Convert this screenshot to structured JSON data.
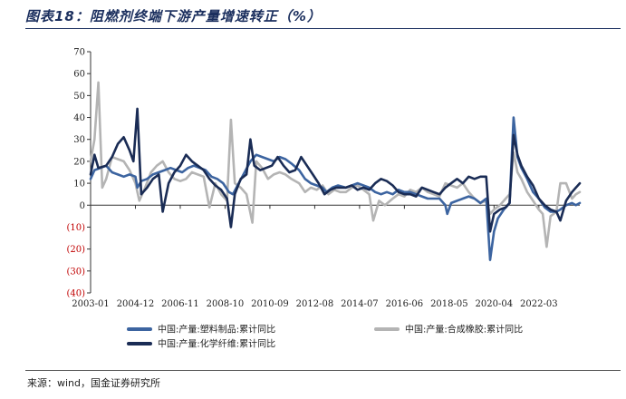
{
  "title": "图表18：阻燃剂终端下游产量增速转正（%）",
  "source": "来源：wind，国金证券研究所",
  "chart_data": {
    "type": "line",
    "ylim": [
      -40,
      70
    ],
    "yticks": [
      70,
      60,
      50,
      40,
      30,
      20,
      10,
      0,
      -10,
      -20,
      -30,
      -40
    ],
    "ytick_labels": [
      "70",
      "60",
      "50",
      "40",
      "30",
      "20",
      "10",
      "0",
      "(10)",
      "(20)",
      "(30)",
      "(40)"
    ],
    "xticks": [
      "2003-01",
      "2004-12",
      "2006-11",
      "2008-10",
      "2010-09",
      "2012-08",
      "2014-07",
      "2016-06",
      "2018-05",
      "2020-04",
      "2022-03"
    ],
    "x_range": [
      "2003-01",
      "2023-12"
    ],
    "grid": false,
    "legend_position": "bottom",
    "series": [
      {
        "name": "中国:产量:塑料制品:累计同比",
        "color": "#3c64a0",
        "points": [
          [
            "2003-01",
            12
          ],
          [
            "2003-03",
            16
          ],
          [
            "2003-06",
            17
          ],
          [
            "2003-09",
            18
          ],
          [
            "2003-12",
            15
          ],
          [
            "2004-03",
            14
          ],
          [
            "2004-06",
            13
          ],
          [
            "2004-09",
            14
          ],
          [
            "2004-12",
            13
          ],
          [
            "2005-01",
            8
          ],
          [
            "2005-03",
            11
          ],
          [
            "2005-06",
            12
          ],
          [
            "2005-09",
            14
          ],
          [
            "2005-12",
            15
          ],
          [
            "2006-03",
            16
          ],
          [
            "2006-06",
            17
          ],
          [
            "2006-09",
            16
          ],
          [
            "2006-12",
            15
          ],
          [
            "2007-03",
            17
          ],
          [
            "2007-06",
            18
          ],
          [
            "2007-09",
            17
          ],
          [
            "2007-12",
            16
          ],
          [
            "2008-03",
            13
          ],
          [
            "2008-06",
            12
          ],
          [
            "2008-09",
            10
          ],
          [
            "2008-12",
            6
          ],
          [
            "2009-02",
            5
          ],
          [
            "2009-05",
            10
          ],
          [
            "2009-08",
            15
          ],
          [
            "2009-11",
            20
          ],
          [
            "2010-02",
            23
          ],
          [
            "2010-05",
            22
          ],
          [
            "2010-08",
            21
          ],
          [
            "2010-11",
            20
          ],
          [
            "2011-02",
            22
          ],
          [
            "2011-05",
            21
          ],
          [
            "2011-08",
            19
          ],
          [
            "2011-12",
            16
          ],
          [
            "2012-03",
            12
          ],
          [
            "2012-06",
            10
          ],
          [
            "2012-09",
            9
          ],
          [
            "2012-12",
            8
          ],
          [
            "2013-02",
            6
          ],
          [
            "2013-05",
            8
          ],
          [
            "2013-08",
            9
          ],
          [
            "2013-12",
            8
          ],
          [
            "2014-03",
            9
          ],
          [
            "2014-06",
            10
          ],
          [
            "2014-09",
            9
          ],
          [
            "2014-12",
            8
          ],
          [
            "2015-03",
            6
          ],
          [
            "2015-06",
            5
          ],
          [
            "2015-09",
            6
          ],
          [
            "2015-12",
            5
          ],
          [
            "2016-03",
            7
          ],
          [
            "2016-06",
            6
          ],
          [
            "2016-09",
            6
          ],
          [
            "2016-12",
            5
          ],
          [
            "2017-03",
            4
          ],
          [
            "2017-06",
            3
          ],
          [
            "2017-09",
            3
          ],
          [
            "2017-12",
            3
          ],
          [
            "2018-03",
            0
          ],
          [
            "2018-04",
            -4
          ],
          [
            "2018-06",
            1
          ],
          [
            "2018-09",
            2
          ],
          [
            "2018-12",
            3
          ],
          [
            "2019-03",
            4
          ],
          [
            "2019-06",
            3
          ],
          [
            "2019-09",
            1
          ],
          [
            "2019-12",
            3
          ],
          [
            "2020-02",
            -25
          ],
          [
            "2020-04",
            -12
          ],
          [
            "2020-06",
            -6
          ],
          [
            "2020-09",
            -2
          ],
          [
            "2020-12",
            1
          ],
          [
            "2021-02",
            40
          ],
          [
            "2021-04",
            22
          ],
          [
            "2021-06",
            17
          ],
          [
            "2021-09",
            12
          ],
          [
            "2021-12",
            6
          ],
          [
            "2022-03",
            3
          ],
          [
            "2022-06",
            -1
          ],
          [
            "2022-09",
            -3
          ],
          [
            "2022-12",
            -3
          ],
          [
            "2023-02",
            -2
          ],
          [
            "2023-05",
            0
          ],
          [
            "2023-08",
            1
          ],
          [
            "2023-10",
            0
          ],
          [
            "2023-12",
            1
          ]
        ]
      },
      {
        "name": "中国:产量:合成橡胶:累计同比",
        "color": "#b4b4b4",
        "points": [
          [
            "2003-01",
            20
          ],
          [
            "2003-03",
            30
          ],
          [
            "2003-05",
            56
          ],
          [
            "2003-07",
            8
          ],
          [
            "2003-09",
            12
          ],
          [
            "2003-12",
            22
          ],
          [
            "2004-03",
            21
          ],
          [
            "2004-06",
            20
          ],
          [
            "2004-09",
            16
          ],
          [
            "2004-12",
            10
          ],
          [
            "2005-02",
            2
          ],
          [
            "2005-05",
            8
          ],
          [
            "2005-08",
            15
          ],
          [
            "2005-11",
            18
          ],
          [
            "2006-02",
            20
          ],
          [
            "2006-05",
            15
          ],
          [
            "2006-08",
            12
          ],
          [
            "2006-11",
            11
          ],
          [
            "2007-02",
            12
          ],
          [
            "2007-05",
            15
          ],
          [
            "2007-08",
            14
          ],
          [
            "2007-11",
            13
          ],
          [
            "2008-02",
            -1
          ],
          [
            "2008-05",
            10
          ],
          [
            "2008-08",
            5
          ],
          [
            "2008-11",
            2
          ],
          [
            "2009-01",
            39
          ],
          [
            "2009-03",
            10
          ],
          [
            "2009-06",
            8
          ],
          [
            "2009-09",
            5
          ],
          [
            "2009-12",
            -8
          ],
          [
            "2010-02",
            20
          ],
          [
            "2010-05",
            17
          ],
          [
            "2010-08",
            12
          ],
          [
            "2010-11",
            14
          ],
          [
            "2011-02",
            15
          ],
          [
            "2011-05",
            14
          ],
          [
            "2011-08",
            12
          ],
          [
            "2011-12",
            10
          ],
          [
            "2012-03",
            6
          ],
          [
            "2012-06",
            8
          ],
          [
            "2012-09",
            7
          ],
          [
            "2012-12",
            9
          ],
          [
            "2013-03",
            5
          ],
          [
            "2013-06",
            7
          ],
          [
            "2013-09",
            6
          ],
          [
            "2013-12",
            6
          ],
          [
            "2014-03",
            8
          ],
          [
            "2014-06",
            9
          ],
          [
            "2014-09",
            7
          ],
          [
            "2014-12",
            5
          ],
          [
            "2015-02",
            -7
          ],
          [
            "2015-05",
            2
          ],
          [
            "2015-08",
            0
          ],
          [
            "2015-12",
            3
          ],
          [
            "2016-03",
            5
          ],
          [
            "2016-06",
            4
          ],
          [
            "2016-09",
            7
          ],
          [
            "2016-12",
            6
          ],
          [
            "2017-03",
            8
          ],
          [
            "2017-06",
            6
          ],
          [
            "2017-09",
            5
          ],
          [
            "2017-12",
            4
          ],
          [
            "2018-03",
            10
          ],
          [
            "2018-06",
            9
          ],
          [
            "2018-09",
            8
          ],
          [
            "2018-12",
            10
          ],
          [
            "2019-03",
            6
          ],
          [
            "2019-06",
            3
          ],
          [
            "2019-09",
            1
          ],
          [
            "2019-12",
            2
          ],
          [
            "2020-02",
            -4
          ],
          [
            "2020-04",
            -2
          ],
          [
            "2020-07",
            0
          ],
          [
            "2020-10",
            3
          ],
          [
            "2020-12",
            5
          ],
          [
            "2021-02",
            24
          ],
          [
            "2021-04",
            15
          ],
          [
            "2021-06",
            12
          ],
          [
            "2021-09",
            6
          ],
          [
            "2021-12",
            2
          ],
          [
            "2022-03",
            -2
          ],
          [
            "2022-05",
            -4
          ],
          [
            "2022-07",
            -19
          ],
          [
            "2022-09",
            -5
          ],
          [
            "2022-12",
            -3
          ],
          [
            "2023-02",
            10
          ],
          [
            "2023-05",
            10
          ],
          [
            "2023-08",
            3
          ],
          [
            "2023-10",
            5
          ],
          [
            "2023-12",
            6
          ]
        ]
      },
      {
        "name": "中国:产量:化学纤维:累计同比",
        "color": "#1a2c55",
        "points": [
          [
            "2003-01",
            14
          ],
          [
            "2003-03",
            23
          ],
          [
            "2003-05",
            17
          ],
          [
            "2003-09",
            18
          ],
          [
            "2003-12",
            22
          ],
          [
            "2004-03",
            28
          ],
          [
            "2004-06",
            31
          ],
          [
            "2004-09",
            25
          ],
          [
            "2004-11",
            20
          ],
          [
            "2005-01",
            44
          ],
          [
            "2005-03",
            5
          ],
          [
            "2005-06",
            8
          ],
          [
            "2005-09",
            12
          ],
          [
            "2005-12",
            14
          ],
          [
            "2006-02",
            -3
          ],
          [
            "2006-05",
            10
          ],
          [
            "2006-08",
            15
          ],
          [
            "2006-11",
            18
          ],
          [
            "2007-02",
            23
          ],
          [
            "2007-05",
            20
          ],
          [
            "2007-08",
            18
          ],
          [
            "2007-11",
            16
          ],
          [
            "2008-02",
            12
          ],
          [
            "2008-05",
            9
          ],
          [
            "2008-08",
            7
          ],
          [
            "2008-11",
            3
          ],
          [
            "2009-01",
            -10
          ],
          [
            "2009-03",
            5
          ],
          [
            "2009-06",
            12
          ],
          [
            "2009-09",
            14
          ],
          [
            "2009-11",
            30
          ],
          [
            "2010-01",
            18
          ],
          [
            "2010-04",
            16
          ],
          [
            "2010-07",
            17
          ],
          [
            "2010-10",
            18
          ],
          [
            "2011-01",
            22
          ],
          [
            "2011-04",
            18
          ],
          [
            "2011-07",
            15
          ],
          [
            "2011-10",
            16
          ],
          [
            "2012-01",
            22
          ],
          [
            "2012-04",
            18
          ],
          [
            "2012-07",
            14
          ],
          [
            "2012-10",
            10
          ],
          [
            "2013-01",
            5
          ],
          [
            "2013-04",
            7
          ],
          [
            "2013-07",
            8
          ],
          [
            "2013-12",
            8
          ],
          [
            "2014-03",
            9
          ],
          [
            "2014-06",
            7
          ],
          [
            "2014-09",
            8
          ],
          [
            "2014-12",
            7
          ],
          [
            "2015-03",
            10
          ],
          [
            "2015-06",
            12
          ],
          [
            "2015-09",
            11
          ],
          [
            "2015-12",
            9
          ],
          [
            "2016-03",
            6
          ],
          [
            "2016-06",
            5
          ],
          [
            "2016-09",
            5
          ],
          [
            "2016-12",
            4
          ],
          [
            "2017-03",
            8
          ],
          [
            "2017-06",
            7
          ],
          [
            "2017-09",
            6
          ],
          [
            "2017-12",
            5
          ],
          [
            "2018-03",
            8
          ],
          [
            "2018-06",
            10
          ],
          [
            "2018-09",
            12
          ],
          [
            "2018-12",
            10
          ],
          [
            "2019-03",
            13
          ],
          [
            "2019-06",
            12
          ],
          [
            "2019-09",
            13
          ],
          [
            "2019-12",
            13
          ],
          [
            "2020-02",
            -12
          ],
          [
            "2020-04",
            -4
          ],
          [
            "2020-07",
            -2
          ],
          [
            "2020-10",
            -1
          ],
          [
            "2020-12",
            1
          ],
          [
            "2021-02",
            32
          ],
          [
            "2021-04",
            23
          ],
          [
            "2021-06",
            18
          ],
          [
            "2021-09",
            13
          ],
          [
            "2021-12",
            9
          ],
          [
            "2022-03",
            3
          ],
          [
            "2022-06",
            0
          ],
          [
            "2022-09",
            -2
          ],
          [
            "2022-12",
            -3
          ],
          [
            "2023-02",
            -7
          ],
          [
            "2023-05",
            2
          ],
          [
            "2023-08",
            6
          ],
          [
            "2023-10",
            8
          ],
          [
            "2023-12",
            10
          ]
        ]
      }
    ]
  }
}
